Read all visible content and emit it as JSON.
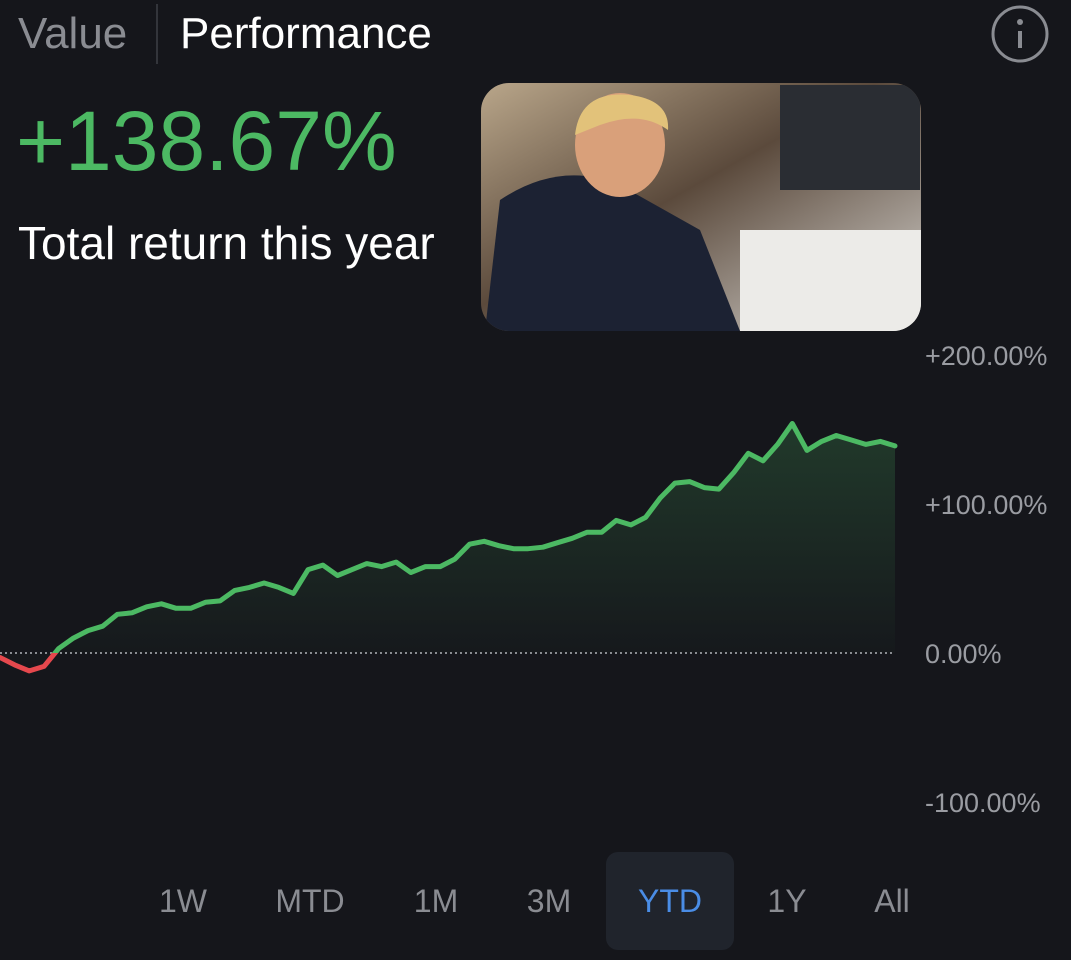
{
  "tabs": [
    "Value",
    "Performance"
  ],
  "headline": {
    "value": "+138.67%",
    "label": "Total return this year"
  },
  "chart_data": {
    "type": "line",
    "values": [
      -3,
      -8,
      -12,
      -9,
      3,
      10,
      15,
      18,
      26,
      27,
      31,
      33,
      30,
      30,
      34,
      35,
      42,
      44,
      47,
      44,
      40,
      56,
      59,
      52,
      56,
      60,
      58,
      61,
      54,
      58,
      58,
      63,
      73,
      75,
      72,
      70,
      70,
      71,
      74,
      77,
      81,
      81,
      89,
      86,
      91,
      104,
      114,
      115,
      111,
      110,
      121,
      134,
      129,
      140,
      154,
      136,
      142,
      146,
      143,
      140,
      142,
      139
    ],
    "color": "#4cb963",
    "negative_color": "#e5484d",
    "ylim": [
      -100,
      200
    ],
    "yticks": [
      {
        "value": 200,
        "label": "+200.00%"
      },
      {
        "value": 100,
        "label": "+100.00%"
      },
      {
        "value": 0,
        "label": "0.00%"
      },
      {
        "value": -100,
        "label": "-100.00%"
      }
    ]
  },
  "ranges": [
    "1W",
    "MTD",
    "1M",
    "3M",
    "YTD",
    "1Y",
    "All"
  ],
  "selected_range": "YTD"
}
